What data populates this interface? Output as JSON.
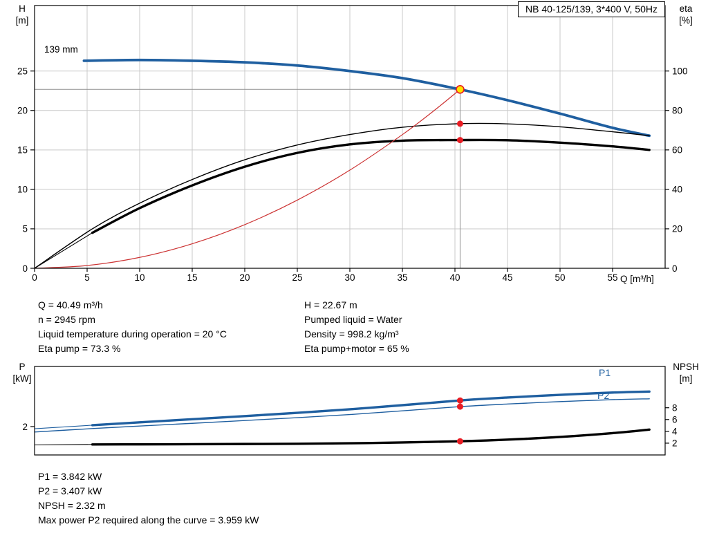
{
  "colors": {
    "curve_blue": "#1f5fa0",
    "curve_black": "#000000",
    "curve_red": "#cc3333",
    "marker_red": "#e81c23",
    "duty_fill": "#ffe400",
    "grid": "#c9c9c9",
    "crosshair": "#8f8f8f",
    "frame": "#000000",
    "text": "#000000"
  },
  "title_box": "NB 40-125/139, 3*400 V, 50Hz",
  "labels": {
    "top_left_axis": [
      "H",
      "[m]"
    ],
    "top_right_axis": [
      "eta",
      "[%]"
    ],
    "bottom_left_axis": [
      "P",
      "[kW]"
    ],
    "bottom_right_axis": [
      "NPSH",
      "[m]"
    ],
    "x_axis_unit": "Q [m³/h]",
    "impeller": "139 mm",
    "p1": "P1",
    "p2": "P2"
  },
  "info_top_left": [
    "Q = 40.49 m³/h",
    "n = 2945 rpm",
    "Liquid temperature during operation = 20 °C",
    "Eta pump = 73.3 %"
  ],
  "info_top_right": [
    "H = 22.67 m",
    "Pumped liquid = Water",
    "Density = 998.2 kg/m³",
    "Eta pump+motor = 65 %"
  ],
  "info_bottom": [
    "P1 = 3.842 kW",
    "P2 = 3.407 kW",
    "NPSH = 2.32 m",
    "Max power P2 required along the curve = 3.959 kW"
  ],
  "chart_data": [
    {
      "type": "line",
      "title": "NB 40-125/139, 3*400 V, 50Hz",
      "xlabel": "Q [m³/h]",
      "ylabel_left": "H [m]",
      "ylabel_right": "eta [%]",
      "xlim": [
        0,
        60
      ],
      "ylim_left": [
        0,
        33.3
      ],
      "ylim_right": [
        0,
        133.2
      ],
      "x_ticks": [
        0,
        5,
        10,
        15,
        20,
        25,
        30,
        35,
        40,
        45,
        50,
        55
      ],
      "y_ticks_left": [
        0,
        5,
        10,
        15,
        20,
        25
      ],
      "y_ticks_right": [
        0,
        20,
        40,
        60,
        80,
        100
      ],
      "grid": true,
      "x_tick_labels": true,
      "series": [
        {
          "name": "head-139mm",
          "axis": "left",
          "color": "blue",
          "width": 3.8,
          "x": [
            4.7,
            10,
            15,
            20,
            25,
            30,
            35,
            40.49,
            45,
            50,
            55,
            58.5
          ],
          "y": [
            26.3,
            26.4,
            26.3,
            26.1,
            25.7,
            25.0,
            24.1,
            22.67,
            21.3,
            19.6,
            17.8,
            16.8
          ]
        },
        {
          "name": "eta-pump",
          "axis": "right",
          "color": "black",
          "width": 1.4,
          "x": [
            0,
            5.5,
            10,
            15,
            20,
            25,
            30,
            35,
            40.49,
            45,
            50,
            55,
            58.5
          ],
          "y": [
            0,
            20,
            33,
            45,
            55,
            62.5,
            67.8,
            71.5,
            73.3,
            73.2,
            71.7,
            69.2,
            67.2
          ]
        },
        {
          "name": "eta-pump-motor",
          "axis": "right",
          "color": "black",
          "width": 3.4,
          "lead_end": 5.5,
          "x": [
            0,
            5.5,
            10,
            15,
            20,
            25,
            30,
            35,
            40.49,
            45,
            50,
            55,
            58.5
          ],
          "y": [
            0,
            18,
            30.5,
            42,
            51.5,
            58.5,
            62.8,
            64.7,
            65,
            64.9,
            63.7,
            61.8,
            60
          ]
        },
        {
          "name": "system-curve",
          "axis": "left",
          "color": "red",
          "width": 1.2,
          "x": [
            0,
            5,
            10,
            15,
            20,
            25,
            30,
            35,
            38,
            40.49
          ],
          "y": [
            0,
            0.35,
            1.38,
            3.11,
            5.53,
            8.64,
            12.44,
            16.94,
            19.97,
            22.67
          ]
        }
      ],
      "crosshair": {
        "q": 40.49,
        "value": 22.67
      },
      "markers": [
        {
          "name": "duty-point",
          "q": 40.49,
          "value": 22.67,
          "axis": "left",
          "style": "duty"
        },
        {
          "name": "eta-pump-point",
          "q": 40.49,
          "value": 73.3,
          "axis": "right",
          "style": "dot"
        },
        {
          "name": "eta-pump-motor-point",
          "q": 40.49,
          "value": 65,
          "axis": "right",
          "style": "dot"
        }
      ]
    },
    {
      "type": "line",
      "title": "",
      "xlabel": "",
      "ylabel_left": "P [kW]",
      "ylabel_right": "NPSH [m]",
      "xlim": [
        0,
        60
      ],
      "ylim_left": [
        0,
        6.24
      ],
      "ylim_right": [
        0,
        15
      ],
      "x_ticks": [],
      "y_ticks_left": [
        2
      ],
      "y_ticks_right": [
        2,
        4,
        6,
        8
      ],
      "grid": false,
      "x_tick_labels": false,
      "series": [
        {
          "name": "p1",
          "axis": "left",
          "color": "blue",
          "width": 3.4,
          "lead_end": 5.5,
          "x": [
            0,
            5.5,
            10,
            15,
            20,
            25,
            30,
            35,
            40.49,
            45,
            50,
            55,
            58.5
          ],
          "y": [
            1.85,
            2.1,
            2.3,
            2.52,
            2.74,
            2.97,
            3.22,
            3.51,
            3.842,
            4.05,
            4.24,
            4.4,
            4.47
          ]
        },
        {
          "name": "p2",
          "axis": "left",
          "color": "blue",
          "width": 1.4,
          "x": [
            0,
            5.5,
            10,
            15,
            20,
            25,
            30,
            35,
            40.49,
            45,
            50,
            55,
            58.5
          ],
          "y": [
            1.62,
            1.86,
            2.04,
            2.23,
            2.43,
            2.63,
            2.85,
            3.11,
            3.407,
            3.59,
            3.76,
            3.9,
            3.959
          ]
        },
        {
          "name": "npsh",
          "axis": "right",
          "color": "black",
          "width": 3.4,
          "lead_end": 5.5,
          "x": [
            0,
            5.5,
            10,
            15,
            20,
            25,
            30,
            35,
            40.49,
            45,
            50,
            55,
            58.5
          ],
          "y": [
            1.7,
            1.78,
            1.8,
            1.82,
            1.86,
            1.9,
            1.98,
            2.12,
            2.32,
            2.6,
            3.05,
            3.7,
            4.3
          ]
        }
      ],
      "markers": [
        {
          "name": "p1-point",
          "q": 40.49,
          "value": 3.842,
          "axis": "left",
          "style": "dot"
        },
        {
          "name": "p2-point",
          "q": 40.49,
          "value": 3.407,
          "axis": "left",
          "style": "dot"
        },
        {
          "name": "npsh-point",
          "q": 40.49,
          "value": 2.32,
          "axis": "right",
          "style": "dot"
        }
      ]
    }
  ]
}
